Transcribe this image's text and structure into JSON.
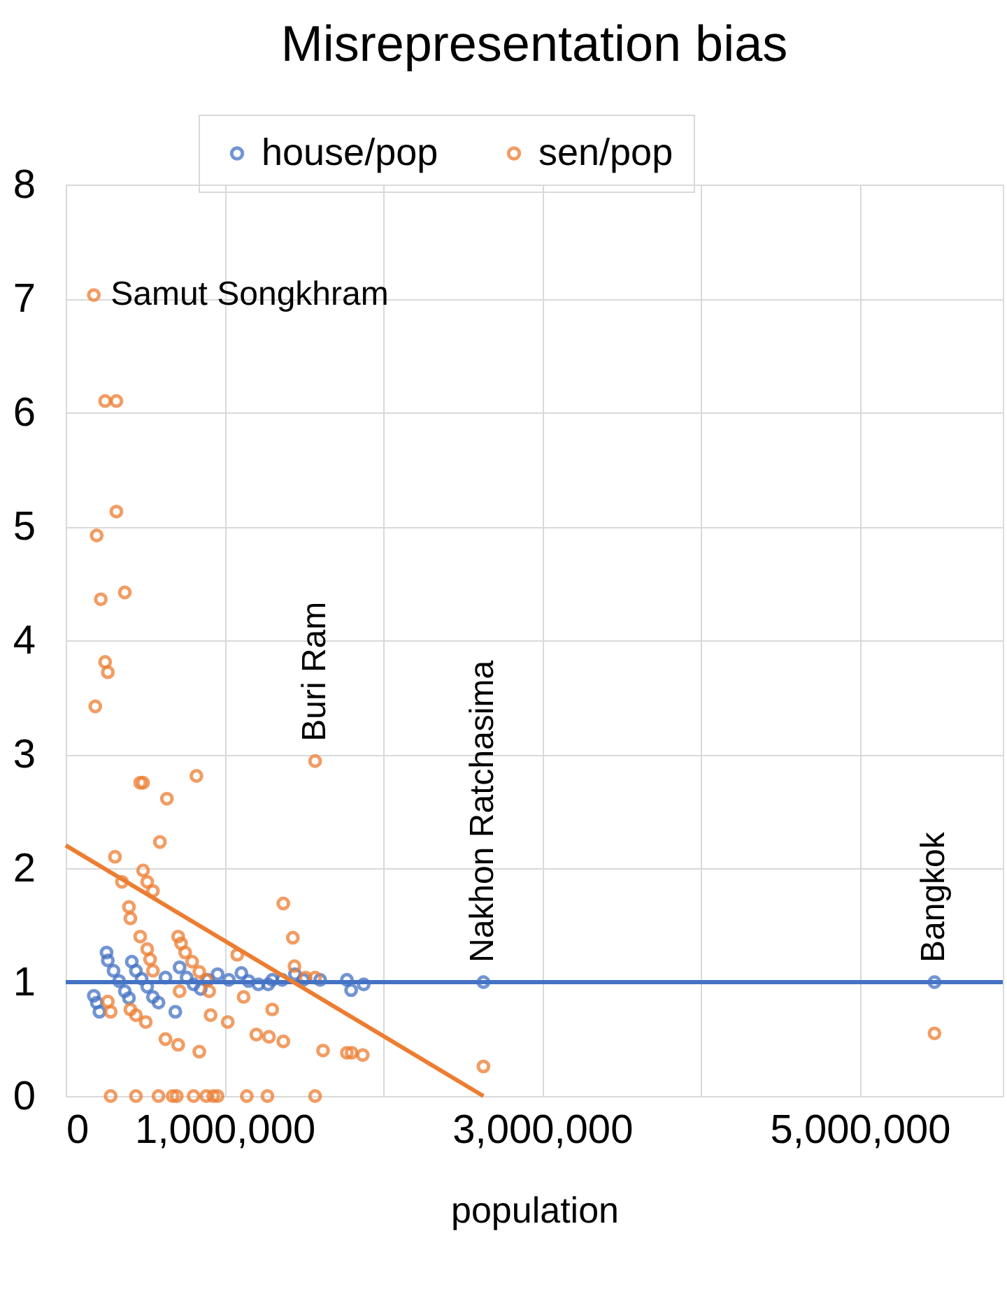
{
  "chart_data": {
    "type": "scatter",
    "title": "Misrepresentation bias",
    "xlabel": "population",
    "xlim": [
      0,
      5900000
    ],
    "ylim": [
      0,
      8
    ],
    "xticks": [
      0,
      {
        "value": 1000000,
        "label": "1,000,000"
      },
      {
        "value": 2000000,
        "label": null
      },
      {
        "value": 3000000,
        "label": "3,000,000"
      },
      {
        "value": 4000000,
        "label": null
      },
      {
        "value": 5000000,
        "label": "5,000,000"
      }
    ],
    "yticks": [
      0,
      1,
      2,
      3,
      4,
      5,
      6,
      7,
      8
    ],
    "grid": true,
    "legend": "top",
    "marker": "circle",
    "series": [
      {
        "name": "house/pop",
        "color": "#4472c4",
        "x": [
          177000,
          195000,
          212000,
          257000,
          265000,
          301000,
          336000,
          372000,
          398000,
          416000,
          442000,
          478000,
          513000,
          549000,
          584000,
          690000,
          628000,
          717000,
          761000,
          805000,
          850000,
          894000,
          956000,
          1027000,
          1106000,
          1151000,
          1213000,
          1275000,
          1301000,
          1363000,
          1443000,
          1496000,
          1602000,
          1770000,
          1797000,
          1876000,
          2630000,
          5470000
        ],
        "values": [
          0.88,
          0.82,
          0.74,
          1.26,
          1.19,
          1.1,
          1.01,
          0.92,
          0.86,
          1.18,
          1.1,
          1.03,
          0.96,
          0.87,
          0.82,
          0.74,
          1.04,
          1.13,
          1.04,
          0.98,
          0.94,
          1.02,
          1.07,
          1.02,
          1.08,
          1.01,
          0.98,
          0.98,
          1.02,
          1.02,
          1.07,
          1.02,
          1.02,
          1.02,
          0.93,
          0.98,
          1.0,
          1.0
        ]
      },
      {
        "name": "sen/pop",
        "color": "#ed7d31",
        "x": [
          177000,
          248000,
          319000,
          319000,
          195000,
          372000,
          221000,
          248000,
          265000,
          186000,
          469000,
          487000,
          823000,
          637000,
          593000,
          1570000,
          310000,
          487000,
          513000,
          549000,
          354000,
          398000,
          407000,
          469000,
          1370000,
          1430000,
          1440000,
          513000,
          531000,
          549000,
          708000,
          726000,
          752000,
          796000,
          841000,
          885000,
          903000,
          1510000,
          1570000,
          1080000,
          407000,
          442000,
          504000,
          628000,
          708000,
          841000,
          912000,
          1020000,
          1120000,
          1200000,
          1280000,
          1370000,
          1300000,
          1620000,
          1770000,
          1800000,
          1870000,
          717000,
          265000,
          283000,
          2630000,
          5470000,
          283000,
          442000,
          584000,
          673000,
          699000,
          805000,
          885000,
          929000,
          956000,
          1140000,
          1270000,
          1570000
        ],
        "values": [
          7.03,
          6.1,
          6.1,
          5.13,
          4.92,
          4.42,
          4.36,
          3.81,
          3.72,
          3.42,
          2.75,
          2.75,
          2.81,
          2.61,
          2.23,
          2.94,
          2.1,
          1.98,
          1.88,
          1.8,
          1.88,
          1.66,
          1.56,
          1.4,
          1.69,
          1.39,
          1.14,
          1.29,
          1.2,
          1.1,
          1.4,
          1.34,
          1.26,
          1.18,
          1.09,
          1.02,
          0.92,
          1.04,
          1.04,
          1.24,
          0.76,
          0.71,
          0.65,
          0.5,
          0.45,
          0.39,
          0.71,
          0.65,
          0.87,
          0.54,
          0.52,
          0.48,
          0.76,
          0.4,
          0.38,
          0.38,
          0.36,
          0.92,
          0.83,
          0.74,
          0.26,
          0.55,
          0,
          0,
          0,
          0,
          0,
          0,
          0,
          0,
          0,
          0,
          0,
          0
        ]
      },
      {
        "type": "line",
        "marker": "none",
        "line_style": "solid",
        "color": "#4472c4",
        "x": [
          0,
          5900000
        ],
        "values": [
          1.0,
          1.0
        ]
      },
      {
        "type": "line",
        "marker": "none",
        "line_style": "solid",
        "color": "#ed7d31",
        "x": [
          0,
          2630000
        ],
        "values": [
          2.2,
          0
        ]
      }
    ],
    "annotations": [
      {
        "text": "Samut Songkhram",
        "x": 177000,
        "y": 7.03
      },
      {
        "text": "Buri Ram",
        "x": 1570000,
        "y": 2.94
      },
      {
        "text": "Nakhon Ratchasima",
        "x": 2630000,
        "y": 1.0
      },
      {
        "text": "Bangkok",
        "x": 5470000,
        "y": 1.0
      }
    ]
  }
}
